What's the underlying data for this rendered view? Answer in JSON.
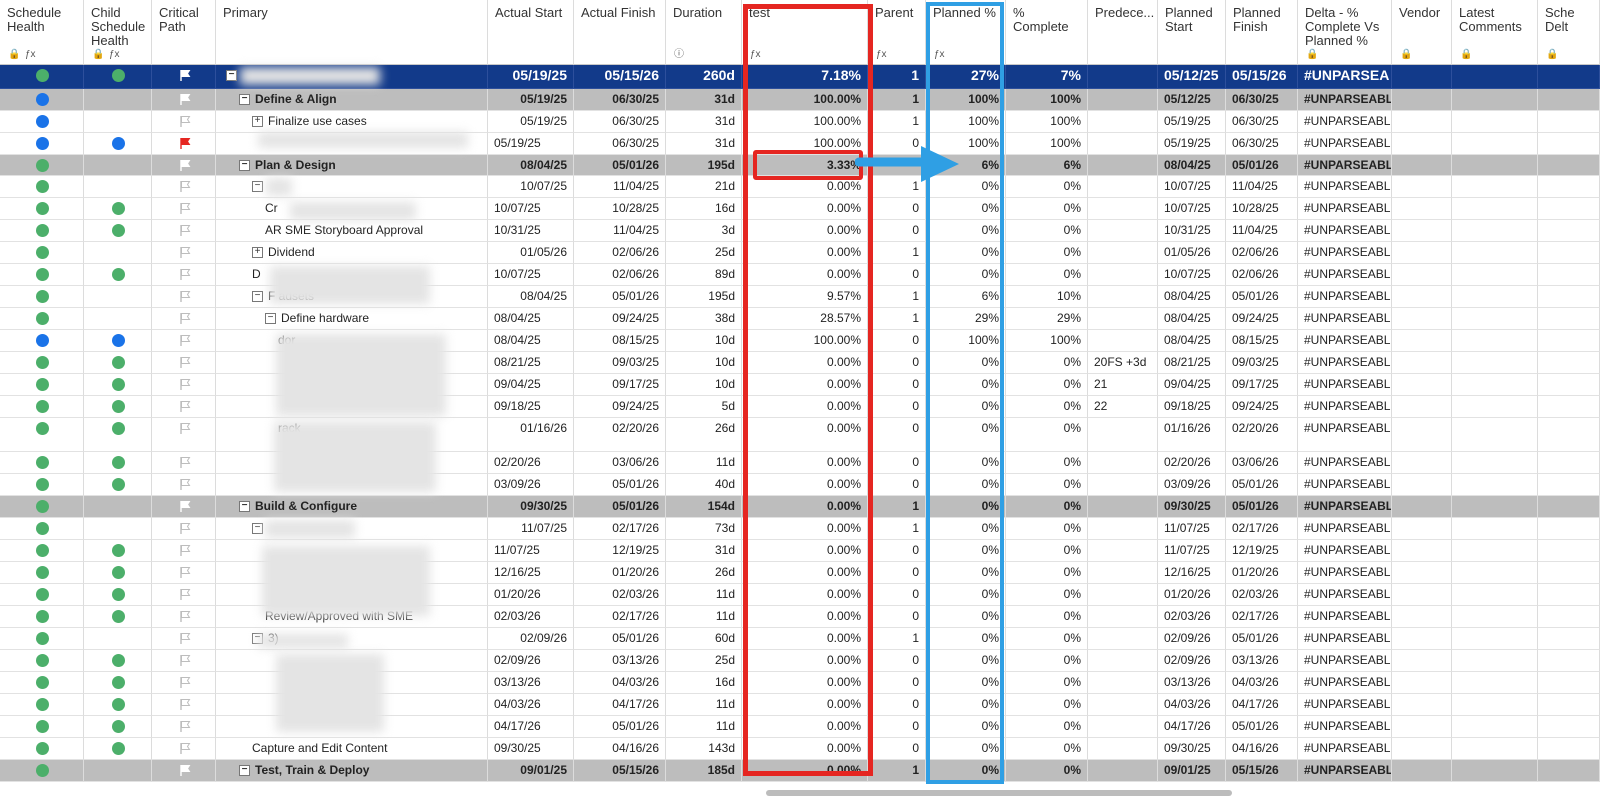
{
  "columns": [
    {
      "key": "sh",
      "label": "Schedule Health",
      "icons": [
        "lock-icon",
        "formula-icon"
      ]
    },
    {
      "key": "csh",
      "label": "Child Schedule Health",
      "icons": [
        "lock-icon",
        "formula-icon"
      ]
    },
    {
      "key": "cp",
      "label": "Critical Path",
      "icons": []
    },
    {
      "key": "pri",
      "label": "Primary",
      "icons": []
    },
    {
      "key": "as",
      "label": "Actual Start",
      "icons": []
    },
    {
      "key": "af",
      "label": "Actual Finish",
      "icons": []
    },
    {
      "key": "dur",
      "label": "Duration",
      "icons": [
        "info-icon"
      ]
    },
    {
      "key": "test",
      "label": "test",
      "icons": [
        "formula-icon"
      ]
    },
    {
      "key": "par",
      "label": "Parent",
      "icons": [
        "formula-icon"
      ]
    },
    {
      "key": "pp",
      "label": "Planned %",
      "icons": [
        "formula-icon"
      ]
    },
    {
      "key": "pc",
      "label": "% Complete",
      "icons": []
    },
    {
      "key": "pred",
      "label": "Predece...",
      "icons": []
    },
    {
      "key": "ps",
      "label": "Planned Start",
      "icons": []
    },
    {
      "key": "pf",
      "label": "Planned Finish",
      "icons": []
    },
    {
      "key": "delta",
      "label": "Delta - % Complete Vs Planned %",
      "icons": [
        "lock-icon"
      ]
    },
    {
      "key": "vendor",
      "label": "Vendor",
      "icons": [
        "lock-icon"
      ]
    },
    {
      "key": "lc",
      "label": "Latest Comments",
      "icons": [
        "lock-icon"
      ]
    },
    {
      "key": "sched",
      "label": "Sche Delt",
      "icons": [
        "lock-icon"
      ]
    }
  ],
  "colors": {
    "green": "#4caf6a",
    "blue": "#1a73e8",
    "navy": "#123a8a",
    "gray": "#bdbdbd",
    "red": "#e52621",
    "lightblue": "#2f9fe4"
  },
  "rows": [
    {
      "type": "top",
      "sh": "green",
      "csh": "green",
      "flag": "white",
      "tog": "−",
      "name": "",
      "indent": 0,
      "suffix": "",
      "as": "05/19/25",
      "af": "05/15/26",
      "dur": "260d",
      "test": "7.18%",
      "par": "1",
      "pp": "27%",
      "pc": "7%",
      "pred": "",
      "ps": "05/12/25",
      "pf": "05/15/26",
      "delta": "#UNPARSEA"
    },
    {
      "type": "group",
      "sh": "blue",
      "csh": "",
      "flag": "white",
      "tog": "−",
      "name": "Define & Align",
      "indent": 1,
      "suffix": "",
      "as": "05/19/25",
      "af": "06/30/25",
      "dur": "31d",
      "test": "100.00%",
      "par": "1",
      "pp": "100%",
      "pc": "100%",
      "pred": "",
      "ps": "05/12/25",
      "pf": "06/30/25",
      "delta": "#UNPARSEABLE"
    },
    {
      "type": "task",
      "sh": "blue",
      "csh": "",
      "flag": "outline",
      "tog": "+",
      "name": "Finalize use cases",
      "indent": 2,
      "suffix": "",
      "as": "05/19/25",
      "af": "06/30/25",
      "dur": "31d",
      "test": "100.00%",
      "par": "1",
      "pp": "100%",
      "pc": "100%",
      "pred": "",
      "ps": "05/19/25",
      "pf": "06/30/25",
      "delta": "#UNPARSEABL"
    },
    {
      "type": "task",
      "sh": "blue",
      "csh": "blue",
      "flag": "red",
      "tog": "",
      "name": "",
      "indent": 2,
      "suffix": "rill",
      "as": "05/19/25",
      "af": "06/30/25",
      "dur": "31d",
      "test": "100.00%",
      "par": "0",
      "pp": "100%",
      "pc": "100%",
      "pred": "",
      "ps": "05/19/25",
      "pf": "06/30/25",
      "delta": "#UNPARSEABL"
    },
    {
      "type": "group",
      "sh": "green",
      "csh": "",
      "flag": "white",
      "tog": "−",
      "name": "Plan & Design",
      "indent": 1,
      "suffix": "",
      "as": "08/04/25",
      "af": "05/01/26",
      "dur": "195d",
      "test": "3.33%",
      "par": "",
      "pp": "6%",
      "pc": "6%",
      "pred": "",
      "ps": "08/04/25",
      "pf": "05/01/26",
      "delta": "#UNPARSEABLE"
    },
    {
      "type": "task",
      "sh": "green",
      "csh": "",
      "flag": "outline",
      "tog": "−",
      "name": "",
      "indent": 2,
      "suffix": "",
      "as": "10/07/25",
      "af": "11/04/25",
      "dur": "21d",
      "test": "0.00%",
      "par": "1",
      "pp": "0%",
      "pc": "0%",
      "pred": "",
      "ps": "10/07/25",
      "pf": "11/04/25",
      "delta": "#UNPARSEABL"
    },
    {
      "type": "task",
      "sh": "green",
      "csh": "green",
      "flag": "outline",
      "tog": "",
      "name": "Cr",
      "indent": 3,
      "suffix": "un",
      "as": "10/07/25",
      "af": "10/28/25",
      "dur": "16d",
      "test": "0.00%",
      "par": "0",
      "pp": "0%",
      "pc": "0%",
      "pred": "",
      "ps": "10/07/25",
      "pf": "10/28/25",
      "delta": "#UNPARSEABL"
    },
    {
      "type": "task",
      "sh": "green",
      "csh": "green",
      "flag": "outline",
      "tog": "",
      "name": "AR SME Storyboard Approval",
      "indent": 3,
      "suffix": "un",
      "as": "10/31/25",
      "af": "11/04/25",
      "dur": "3d",
      "test": "0.00%",
      "par": "0",
      "pp": "0%",
      "pc": "0%",
      "pred": "",
      "ps": "10/31/25",
      "pf": "11/04/25",
      "delta": "#UNPARSEABL"
    },
    {
      "type": "task",
      "sh": "green",
      "csh": "",
      "flag": "outline",
      "tog": "+",
      "name": "Dividend",
      "indent": 2,
      "suffix": "",
      "as": "01/05/26",
      "af": "02/06/26",
      "dur": "25d",
      "test": "0.00%",
      "par": "1",
      "pp": "0%",
      "pc": "0%",
      "pred": "",
      "ps": "01/05/26",
      "pf": "02/06/26",
      "delta": "#UNPARSEABL"
    },
    {
      "type": "task",
      "sh": "green",
      "csh": "green",
      "flag": "outline",
      "tog": "",
      "name": "D",
      "indent": 2,
      "suffix": "un",
      "as": "10/07/25",
      "af": "02/06/26",
      "dur": "89d",
      "test": "0.00%",
      "par": "0",
      "pp": "0%",
      "pc": "0%",
      "pred": "",
      "ps": "10/07/25",
      "pf": "02/06/26",
      "delta": "#UNPARSEABL"
    },
    {
      "type": "task",
      "sh": "green",
      "csh": "",
      "flag": "outline",
      "tog": "−",
      "name": "F                    adsets",
      "indent": 2,
      "suffix": "",
      "as": "08/04/25",
      "af": "05/01/26",
      "dur": "195d",
      "test": "9.57%",
      "par": "1",
      "pp": "6%",
      "pc": "10%",
      "pred": "",
      "ps": "08/04/25",
      "pf": "05/01/26",
      "delta": "#UNPARSEABL"
    },
    {
      "type": "task",
      "sh": "green",
      "csh": "",
      "flag": "outline",
      "tog": "−",
      "name": "Define hardware",
      "indent": 3,
      "suffix": "or",
      "as": "08/04/25",
      "af": "09/24/25",
      "dur": "38d",
      "test": "28.57%",
      "par": "1",
      "pp": "29%",
      "pc": "29%",
      "pred": "",
      "ps": "08/04/25",
      "pf": "09/24/25",
      "delta": "#UNPARSEABL"
    },
    {
      "type": "task",
      "sh": "blue",
      "csh": "blue",
      "flag": "outline",
      "tog": "",
      "name": "dor",
      "indent": 4,
      "suffix": "or",
      "as": "08/04/25",
      "af": "08/15/25",
      "dur": "10d",
      "test": "100.00%",
      "par": "0",
      "pp": "100%",
      "pc": "100%",
      "pred": "",
      "ps": "08/04/25",
      "pf": "08/15/25",
      "delta": "#UNPARSEABL"
    },
    {
      "type": "task",
      "sh": "green",
      "csh": "green",
      "flag": "outline",
      "tog": "",
      "name": "",
      "indent": 4,
      "suffix": "or",
      "as": "08/21/25",
      "af": "09/03/25",
      "dur": "10d",
      "test": "0.00%",
      "par": "0",
      "pp": "0%",
      "pc": "0%",
      "pred": "20FS +3d",
      "ps": "08/21/25",
      "pf": "09/03/25",
      "delta": "#UNPARSEABL"
    },
    {
      "type": "task",
      "sh": "green",
      "csh": "green",
      "flag": "outline",
      "tog": "",
      "name": "",
      "indent": 4,
      "suffix": "or",
      "as": "09/04/25",
      "af": "09/17/25",
      "dur": "10d",
      "test": "0.00%",
      "par": "0",
      "pp": "0%",
      "pc": "0%",
      "pred": "21",
      "ps": "09/04/25",
      "pf": "09/17/25",
      "delta": "#UNPARSEABL"
    },
    {
      "type": "task",
      "sh": "green",
      "csh": "green",
      "flag": "outline",
      "tog": "",
      "name": "",
      "indent": 4,
      "suffix": "ril",
      "as": "09/18/25",
      "af": "09/24/25",
      "dur": "5d",
      "test": "0.00%",
      "par": "0",
      "pp": "0%",
      "pc": "0%",
      "pred": "22",
      "ps": "09/18/25",
      "pf": "09/24/25",
      "delta": "#UNPARSEABL"
    },
    {
      "type": "tall",
      "sh": "green",
      "csh": "green",
      "flag": "outline",
      "tog": "",
      "name": "rack",
      "indent": 4,
      "suffix": "",
      "as": "01/16/26",
      "af": "02/20/26",
      "dur": "26d",
      "test": "0.00%",
      "par": "0",
      "pp": "0%",
      "pc": "0%",
      "pred": "",
      "ps": "01/16/26",
      "pf": "02/20/26",
      "delta": "#UNPARSEABL"
    },
    {
      "type": "task",
      "sh": "green",
      "csh": "green",
      "flag": "outline",
      "tog": "",
      "name": "",
      "indent": 4,
      "suffix": "or",
      "as": "02/20/26",
      "af": "03/06/26",
      "dur": "11d",
      "test": "0.00%",
      "par": "0",
      "pp": "0%",
      "pc": "0%",
      "pred": "",
      "ps": "02/20/26",
      "pf": "03/06/26",
      "delta": "#UNPARSEABL"
    },
    {
      "type": "task",
      "sh": "green",
      "csh": "green",
      "flag": "outline",
      "tog": "",
      "name": "",
      "indent": 4,
      "suffix": "or",
      "as": "03/09/26",
      "af": "05/01/26",
      "dur": "40d",
      "test": "0.00%",
      "par": "0",
      "pp": "0%",
      "pc": "0%",
      "pred": "",
      "ps": "03/09/26",
      "pf": "05/01/26",
      "delta": "#UNPARSEABL"
    },
    {
      "type": "group",
      "sh": "green",
      "csh": "",
      "flag": "white",
      "tog": "−",
      "name": "Build & Configure",
      "indent": 1,
      "suffix": "",
      "as": "09/30/25",
      "af": "05/01/26",
      "dur": "154d",
      "test": "0.00%",
      "par": "1",
      "pp": "0%",
      "pc": "0%",
      "pred": "",
      "ps": "09/30/25",
      "pf": "05/01/26",
      "delta": "#UNPARSEABLE"
    },
    {
      "type": "task",
      "sh": "green",
      "csh": "",
      "flag": "outline",
      "tog": "−",
      "name": "",
      "indent": 2,
      "suffix": "",
      "as": "11/07/25",
      "af": "02/17/26",
      "dur": "73d",
      "test": "0.00%",
      "par": "1",
      "pp": "0%",
      "pc": "0%",
      "pred": "",
      "ps": "11/07/25",
      "pf": "02/17/26",
      "delta": "#UNPARSEABL"
    },
    {
      "type": "task",
      "sh": "green",
      "csh": "green",
      "flag": "outline",
      "tog": "",
      "name": "",
      "indent": 3,
      "suffix": "un",
      "as": "11/07/25",
      "af": "12/19/25",
      "dur": "31d",
      "test": "0.00%",
      "par": "0",
      "pp": "0%",
      "pc": "0%",
      "pred": "",
      "ps": "11/07/25",
      "pf": "12/19/25",
      "delta": "#UNPARSEABL"
    },
    {
      "type": "task",
      "sh": "green",
      "csh": "green",
      "flag": "outline",
      "tog": "",
      "name": "",
      "indent": 3,
      "suffix": "un",
      "as": "12/16/25",
      "af": "01/20/26",
      "dur": "26d",
      "test": "0.00%",
      "par": "0",
      "pp": "0%",
      "pc": "0%",
      "pred": "",
      "ps": "12/16/25",
      "pf": "01/20/26",
      "delta": "#UNPARSEABL"
    },
    {
      "type": "task",
      "sh": "green",
      "csh": "green",
      "flag": "outline",
      "tog": "",
      "name": "",
      "indent": 3,
      "suffix": "un",
      "as": "01/20/26",
      "af": "02/03/26",
      "dur": "11d",
      "test": "0.00%",
      "par": "0",
      "pp": "0%",
      "pc": "0%",
      "pred": "",
      "ps": "01/20/26",
      "pf": "02/03/26",
      "delta": "#UNPARSEABL"
    },
    {
      "type": "task",
      "sh": "green",
      "csh": "green",
      "flag": "outline",
      "tog": "",
      "name": "Review/Approved with SME",
      "indent": 3,
      "suffix": "un",
      "as": "02/03/26",
      "af": "02/17/26",
      "dur": "11d",
      "test": "0.00%",
      "par": "0",
      "pp": "0%",
      "pc": "0%",
      "pred": "",
      "ps": "02/03/26",
      "pf": "02/17/26",
      "delta": "#UNPARSEABL"
    },
    {
      "type": "task",
      "sh": "green",
      "csh": "",
      "flag": "outline",
      "tog": "−",
      "name": "3)",
      "indent": 2,
      "suffix": "",
      "as": "02/09/26",
      "af": "05/01/26",
      "dur": "60d",
      "test": "0.00%",
      "par": "1",
      "pp": "0%",
      "pc": "0%",
      "pred": "",
      "ps": "02/09/26",
      "pf": "05/01/26",
      "delta": "#UNPARSEABL"
    },
    {
      "type": "task",
      "sh": "green",
      "csh": "green",
      "flag": "outline",
      "tog": "",
      "name": "",
      "indent": 3,
      "suffix": "un",
      "as": "02/09/26",
      "af": "03/13/26",
      "dur": "25d",
      "test": "0.00%",
      "par": "0",
      "pp": "0%",
      "pc": "0%",
      "pred": "",
      "ps": "02/09/26",
      "pf": "03/13/26",
      "delta": "#UNPARSEABL"
    },
    {
      "type": "task",
      "sh": "green",
      "csh": "green",
      "flag": "outline",
      "tog": "",
      "name": "",
      "indent": 3,
      "suffix": "un",
      "as": "03/13/26",
      "af": "04/03/26",
      "dur": "16d",
      "test": "0.00%",
      "par": "0",
      "pp": "0%",
      "pc": "0%",
      "pred": "",
      "ps": "03/13/26",
      "pf": "04/03/26",
      "delta": "#UNPARSEABL"
    },
    {
      "type": "task",
      "sh": "green",
      "csh": "green",
      "flag": "outline",
      "tog": "",
      "name": "",
      "indent": 3,
      "suffix": "un",
      "as": "04/03/26",
      "af": "04/17/26",
      "dur": "11d",
      "test": "0.00%",
      "par": "0",
      "pp": "0%",
      "pc": "0%",
      "pred": "",
      "ps": "04/03/26",
      "pf": "04/17/26",
      "delta": "#UNPARSEABL"
    },
    {
      "type": "task",
      "sh": "green",
      "csh": "green",
      "flag": "outline",
      "tog": "",
      "name": "",
      "indent": 3,
      "suffix": "un",
      "as": "04/17/26",
      "af": "05/01/26",
      "dur": "11d",
      "test": "0.00%",
      "par": "0",
      "pp": "0%",
      "pc": "0%",
      "pred": "",
      "ps": "04/17/26",
      "pf": "05/01/26",
      "delta": "#UNPARSEABL"
    },
    {
      "type": "task",
      "sh": "green",
      "csh": "green",
      "flag": "outline",
      "tog": "",
      "name": "Capture and Edit Content",
      "indent": 2,
      "suffix": "un",
      "as": "09/30/25",
      "af": "04/16/26",
      "dur": "143d",
      "test": "0.00%",
      "par": "0",
      "pp": "0%",
      "pc": "0%",
      "pred": "",
      "ps": "09/30/25",
      "pf": "04/16/26",
      "delta": "#UNPARSEABL"
    },
    {
      "type": "group",
      "sh": "green",
      "csh": "",
      "flag": "white",
      "tog": "−",
      "name": "Test, Train & Deploy",
      "indent": 1,
      "suffix": "",
      "as": "09/01/25",
      "af": "05/15/26",
      "dur": "185d",
      "test": "0.00%",
      "par": "1",
      "pp": "0%",
      "pc": "0%",
      "pred": "",
      "ps": "09/01/25",
      "pf": "05/15/26",
      "delta": "#UNPARSEABLE"
    }
  ]
}
